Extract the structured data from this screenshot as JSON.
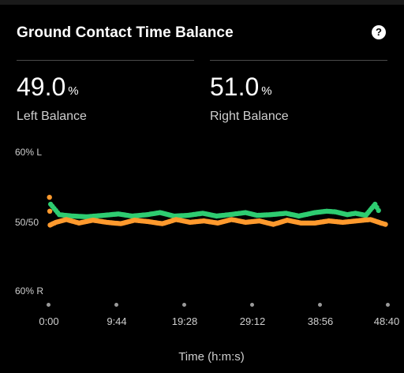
{
  "header": {
    "title": "Ground Contact Time Balance",
    "help_icon": "?"
  },
  "stats": {
    "left": {
      "value": "49.0",
      "unit": "%",
      "label": "Left Balance"
    },
    "right": {
      "value": "51.0",
      "unit": "%",
      "label": "Right Balance"
    }
  },
  "colors": {
    "background": "#000000",
    "divider": "#4a4a4a",
    "left_series": "#ff9a2e",
    "right_series": "#2ecc71",
    "muted_text": "#cfcfcf"
  },
  "chart_data": {
    "type": "scatter",
    "ylabel_ticks": [
      "60% L",
      "50/50",
      "60% R"
    ],
    "x_ticks": [
      "0:00",
      "9:44",
      "19:28",
      "29:12",
      "38:56",
      "48:40"
    ],
    "xlabel": "Time (h:m:s)",
    "xlim_seconds": [
      0,
      2920
    ],
    "ylim_left_percent": [
      40,
      60
    ],
    "series": [
      {
        "name": "",
        "color": "#2ecc71",
        "points": [
          [
            15,
            52.5
          ],
          [
            90,
            51.0
          ],
          [
            200,
            50.8
          ],
          [
            330,
            50.7
          ],
          [
            470,
            50.9
          ],
          [
            600,
            51.1
          ],
          [
            720,
            50.8
          ],
          [
            850,
            51.0
          ],
          [
            960,
            51.3
          ],
          [
            1080,
            50.8
          ],
          [
            1200,
            50.9
          ],
          [
            1330,
            51.2
          ],
          [
            1450,
            50.8
          ],
          [
            1560,
            51.0
          ],
          [
            1700,
            51.3
          ],
          [
            1800,
            50.9
          ],
          [
            1920,
            51.0
          ],
          [
            2050,
            51.2
          ],
          [
            2160,
            50.8
          ],
          [
            2300,
            51.3
          ],
          [
            2400,
            51.5
          ],
          [
            2480,
            51.4
          ],
          [
            2580,
            51.0
          ],
          [
            2650,
            51.2
          ],
          [
            2740,
            50.9
          ],
          [
            2820,
            52.5
          ],
          [
            2850,
            51.6
          ]
        ]
      },
      {
        "name": "",
        "color": "#ff9a2e",
        "points": [
          [
            5,
            53.5
          ],
          [
            10,
            49.5
          ],
          [
            60,
            49.9
          ],
          [
            150,
            50.3
          ],
          [
            260,
            49.8
          ],
          [
            380,
            50.2
          ],
          [
            500,
            49.9
          ],
          [
            620,
            49.7
          ],
          [
            740,
            50.2
          ],
          [
            860,
            50.0
          ],
          [
            980,
            49.7
          ],
          [
            1100,
            50.3
          ],
          [
            1220,
            49.9
          ],
          [
            1340,
            50.1
          ],
          [
            1460,
            49.8
          ],
          [
            1580,
            50.3
          ],
          [
            1700,
            49.9
          ],
          [
            1820,
            50.1
          ],
          [
            1940,
            49.6
          ],
          [
            2060,
            50.2
          ],
          [
            2180,
            49.8
          ],
          [
            2300,
            49.8
          ],
          [
            2420,
            50.1
          ],
          [
            2540,
            49.9
          ],
          [
            2660,
            50.1
          ],
          [
            2780,
            50.3
          ],
          [
            2870,
            49.8
          ],
          [
            2910,
            49.6
          ]
        ]
      }
    ]
  }
}
